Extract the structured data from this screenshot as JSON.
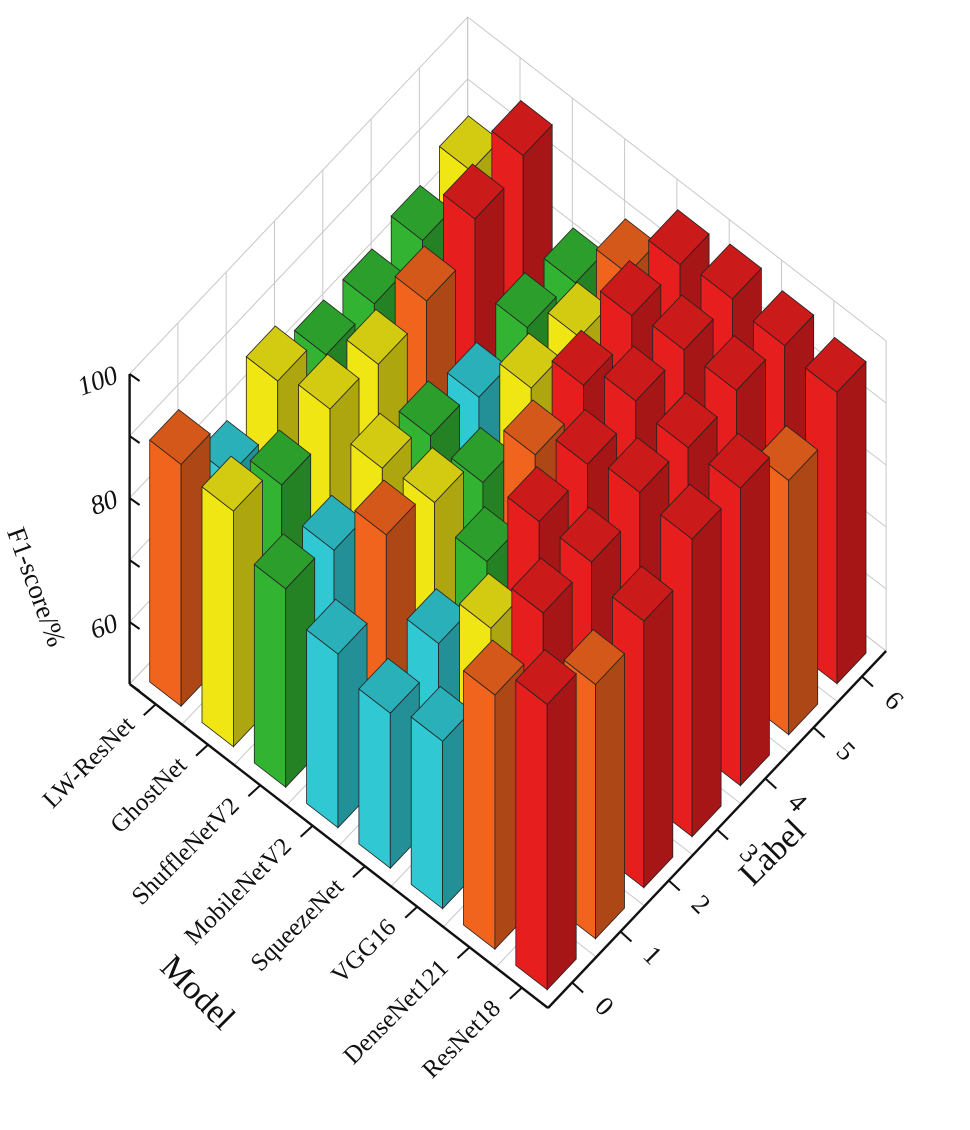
{
  "chart_data": {
    "type": "bar3d",
    "xlabel": "Model",
    "ylabel": "Label",
    "zlabel": "F1-score/%",
    "categories": [
      "ResNet18",
      "DenseNet121",
      "VGG16",
      "SqueezeNet",
      "MobileNetV2",
      "ShuffleNetV2",
      "GhostNet",
      "LW-ResNet"
    ],
    "labels": [
      "0",
      "1",
      "2",
      "3",
      "4",
      "5",
      "6"
    ],
    "zticks": [
      "60",
      "80",
      "100"
    ],
    "zlim": [
      50,
      100
    ],
    "values": [
      [
        96,
        91,
        93,
        98,
        98,
        91,
        97
      ],
      [
        91,
        96,
        96,
        99,
        98,
        99,
        98
      ],
      [
        77,
        87,
        96,
        97,
        99,
        99,
        99
      ],
      [
        75,
        78,
        83,
        92,
        95,
        98,
        98
      ],
      [
        78,
        89,
        86,
        81,
        88,
        88,
        90
      ],
      [
        82,
        80,
        85,
        82,
        80,
        83,
        82
      ],
      [
        88,
        84,
        88,
        87,
        89,
        94,
        96
      ],
      [
        89,
        79,
        86,
        82,
        82,
        84,
        87
      ]
    ],
    "color_scale": [
      {
        "max": 74,
        "color": "#1f5fc8"
      },
      {
        "max": 80,
        "color": "#30c8d2"
      },
      {
        "max": 84,
        "color": "#32b432"
      },
      {
        "max": 88,
        "color": "#f0e614"
      },
      {
        "max": 92,
        "color": "#f0641e"
      },
      {
        "max": 101,
        "color": "#e61e1e"
      }
    ],
    "grid": true
  }
}
